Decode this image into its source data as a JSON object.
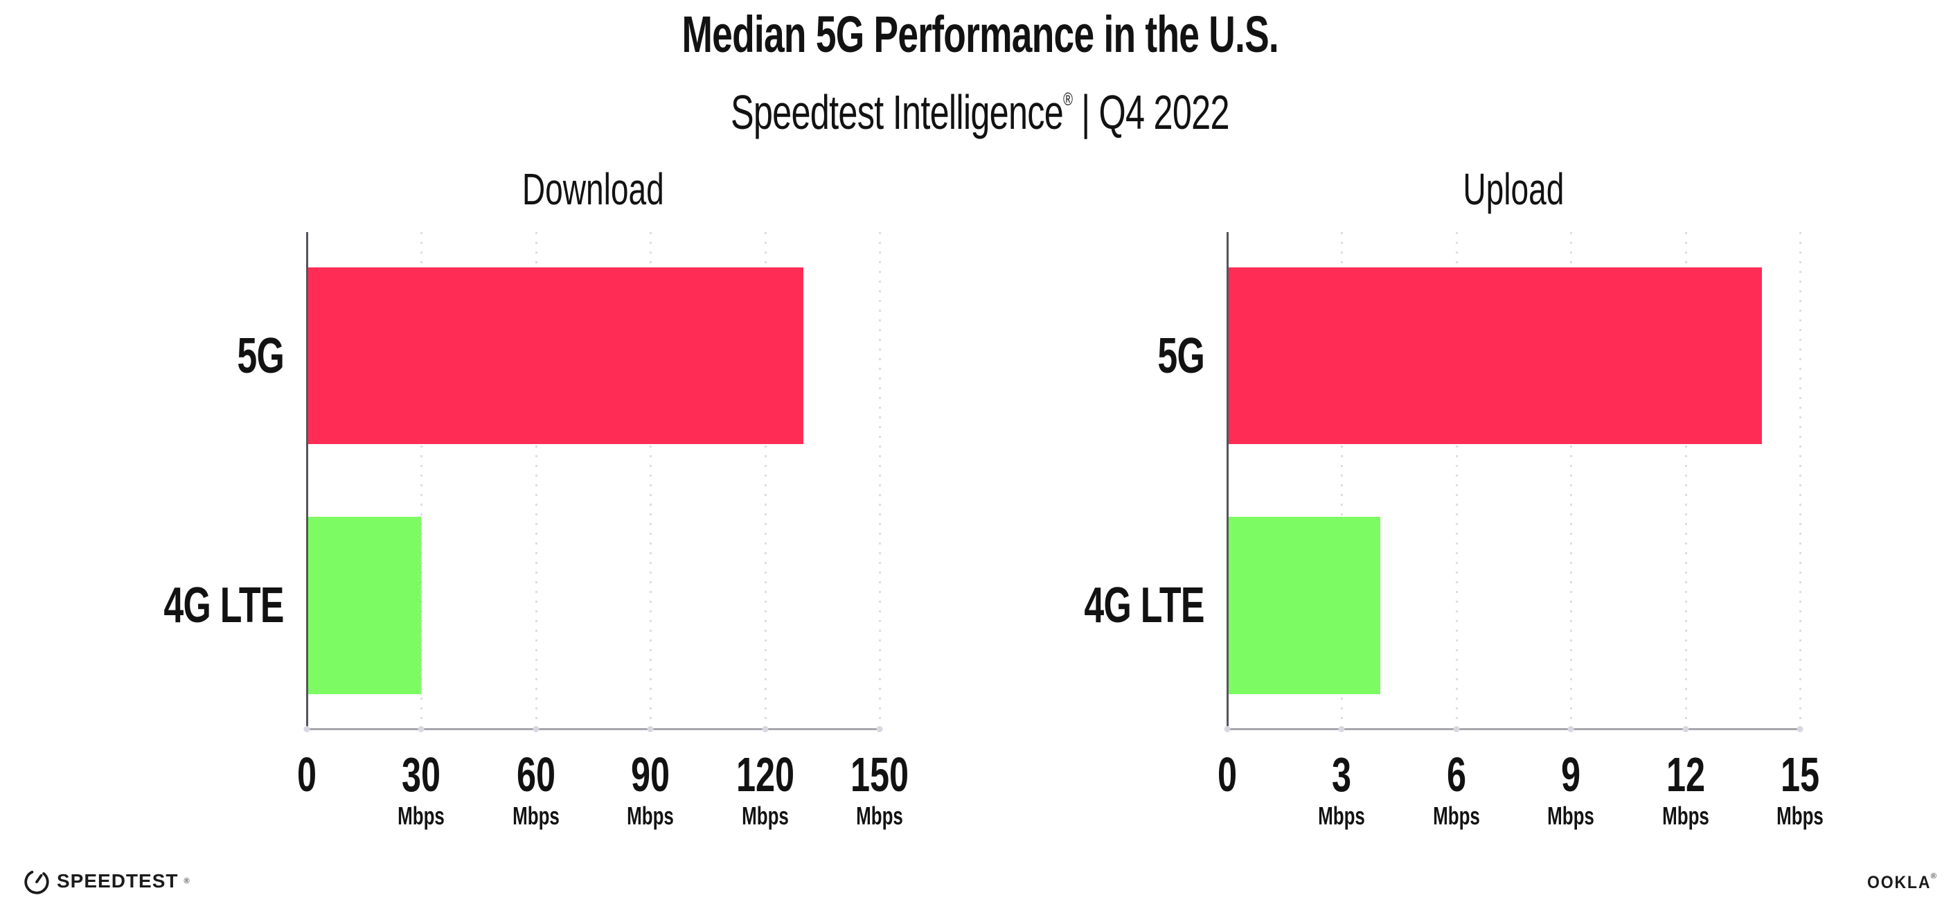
{
  "header": {
    "title": "Median 5G Performance in the U.S.",
    "subtitle_brand": "Speedtest Intelligence",
    "subtitle_trademark": "®",
    "subtitle_divider": "|",
    "subtitle_period": "Q4 2022"
  },
  "chart_data": [
    {
      "type": "bar",
      "orientation": "horizontal",
      "title": "Download",
      "categories": [
        "5G",
        "4G LTE"
      ],
      "values": [
        130,
        30
      ],
      "unit": "Mbps",
      "xlim": [
        0,
        150
      ],
      "xticks": [
        0,
        30,
        60,
        90,
        120,
        150
      ],
      "xtick_unit": "Mbps",
      "bar_colors": [
        "#FF2D55",
        "#7DFB63"
      ],
      "grid": "dotted vertical gridlines at ticks",
      "legend": "none"
    },
    {
      "type": "bar",
      "orientation": "horizontal",
      "title": "Upload",
      "categories": [
        "5G",
        "4G LTE"
      ],
      "values": [
        14,
        4
      ],
      "unit": "Mbps",
      "xlim": [
        0,
        15
      ],
      "xticks": [
        0,
        3,
        6,
        9,
        12,
        15
      ],
      "xtick_unit": "Mbps",
      "bar_colors": [
        "#FF2D55",
        "#7DFB63"
      ],
      "grid": "dotted vertical gridlines at ticks",
      "legend": "none"
    }
  ],
  "footer": {
    "speedtest_label": "SPEEDTEST",
    "speedtest_mark": "®",
    "ookla_label": "OOKLA",
    "ookla_mark": "®"
  },
  "colors": {
    "bar_5g": "#FF2D55",
    "bar_4g_lte": "#7DFB63",
    "gridline": "#DDDDE7",
    "x_axis": "#A6A6AC",
    "y_axis": "#54545B",
    "text": "#121212",
    "background": "#FFFFFF"
  }
}
